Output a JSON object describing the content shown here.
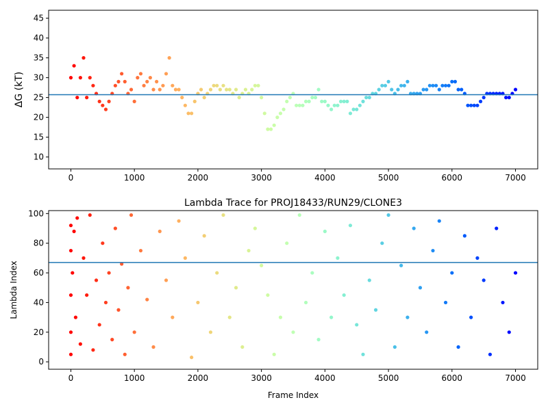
{
  "chart_data": [
    {
      "type": "scatter",
      "title": "",
      "xlabel": "",
      "ylabel": "ΔG (kT)",
      "xlim": [
        -350,
        7350
      ],
      "ylim": [
        7,
        47
      ],
      "xticks": [
        0,
        1000,
        2000,
        3000,
        4000,
        5000,
        6000,
        7000
      ],
      "yticks": [
        10,
        15,
        20,
        25,
        30,
        35,
        40,
        45
      ],
      "color_scale": "rainbow, red at frame 0 to violet at frame 7000",
      "horizontal_line": {
        "y": 25.7,
        "color": "#1f77b4"
      },
      "series": [
        {
          "color": "by frame index",
          "x": [
            0,
            50,
            100,
            150,
            200,
            250,
            300,
            350,
            400,
            450,
            500,
            550,
            600,
            650,
            700,
            750,
            800,
            850,
            900,
            950,
            1000,
            1050,
            1100,
            1150,
            1200,
            1250,
            1300,
            1350,
            1400,
            1450,
            1500,
            1550,
            1600,
            1650,
            1700,
            1750,
            1800,
            1850,
            1900,
            1950,
            2000,
            2050,
            2100,
            2150,
            2200,
            2250,
            2300,
            2350,
            2400,
            2450,
            2500,
            2550,
            2600,
            2650,
            2700,
            2750,
            2800,
            2850,
            2900,
            2950,
            3000,
            3050,
            3100,
            3150,
            3200,
            3250,
            3300,
            3350,
            3400,
            3450,
            3500,
            3550,
            3600,
            3650,
            3700,
            3750,
            3800,
            3850,
            3900,
            3950,
            4000,
            4050,
            4100,
            4150,
            4200,
            4250,
            4300,
            4350,
            4400,
            4450,
            4500,
            4550,
            4600,
            4650,
            4700,
            4750,
            4800,
            4850,
            4900,
            4950,
            5000,
            5050,
            5100,
            5150,
            5200,
            5250,
            5300,
            5350,
            5400,
            5450,
            5500,
            5550,
            5600,
            5650,
            5700,
            5750,
            5800,
            5850,
            5900,
            5950,
            6000,
            6050,
            6100,
            6150,
            6200,
            6250,
            6300,
            6350,
            6400,
            6450,
            6500,
            6550,
            6600,
            6650,
            6700,
            6750,
            6800,
            6850,
            6900,
            6950,
            7000
          ],
          "y": [
            30,
            33,
            25,
            30,
            35,
            25,
            30,
            28,
            26,
            24,
            23,
            22,
            24,
            26,
            28,
            29,
            31,
            29,
            26,
            27,
            24,
            30,
            31,
            28,
            29,
            30,
            27,
            29,
            27,
            28,
            31,
            35,
            28,
            27,
            27,
            25,
            23,
            21,
            21,
            24,
            26,
            27,
            25,
            26,
            27,
            28,
            28,
            27,
            28,
            27,
            27,
            26,
            27,
            25,
            26,
            27,
            26,
            27,
            28,
            28,
            25,
            21,
            17,
            17,
            18,
            20,
            21,
            22,
            24,
            25,
            26,
            23,
            23,
            23,
            24,
            24,
            25,
            25,
            27,
            24,
            24,
            23,
            22,
            23,
            23,
            24,
            24,
            24,
            21,
            22,
            22,
            23,
            24,
            25,
            25,
            26,
            26,
            27,
            28,
            28,
            29,
            27,
            26,
            27,
            28,
            28,
            29,
            26,
            26,
            26,
            26,
            27,
            27,
            28,
            28,
            28,
            27,
            28,
            28,
            28,
            29,
            29,
            27,
            27,
            26,
            23,
            23,
            23,
            23,
            24,
            25,
            26,
            26,
            26,
            26,
            26,
            26,
            25,
            25,
            26,
            27
          ]
        }
      ]
    },
    {
      "type": "scatter",
      "title": "Lambda Trace for PROJ18433/RUN29/CLONE3",
      "xlabel": "Frame Index",
      "ylabel": "Lambda Index",
      "xlim": [
        -350,
        7350
      ],
      "ylim": [
        -5,
        102
      ],
      "xticks": [
        0,
        1000,
        2000,
        3000,
        4000,
        5000,
        6000,
        7000
      ],
      "yticks": [
        0,
        20,
        40,
        60,
        80,
        100
      ],
      "color_scale": "rainbow, red at frame 0 to violet at frame 7000",
      "horizontal_line": {
        "y": 67,
        "color": "#1f77b4"
      },
      "series": [
        {
          "color": "by frame index",
          "x": [
            0,
            0,
            0,
            0,
            0,
            25,
            50,
            75,
            100,
            150,
            200,
            250,
            300,
            350,
            400,
            450,
            500,
            550,
            600,
            650,
            700,
            750,
            800,
            850,
            900,
            950,
            1000,
            1100,
            1200,
            1300,
            1400,
            1500,
            1600,
            1700,
            1800,
            1900,
            2000,
            2100,
            2200,
            2300,
            2400,
            2500,
            2600,
            2700,
            2800,
            2900,
            3000,
            3100,
            3200,
            3300,
            3400,
            3500,
            3600,
            3700,
            3800,
            3900,
            4000,
            4100,
            4200,
            4300,
            4400,
            4500,
            4600,
            4700,
            4800,
            4900,
            5000,
            5100,
            5200,
            5300,
            5400,
            5500,
            5600,
            5700,
            5800,
            5900,
            6000,
            6100,
            6200,
            6300,
            6400,
            6500,
            6600,
            6700,
            6800,
            6900,
            7000
          ],
          "y": [
            5,
            20,
            45,
            75,
            92,
            60,
            88,
            30,
            97,
            12,
            70,
            45,
            99,
            8,
            55,
            25,
            80,
            40,
            60,
            15,
            90,
            35,
            66,
            5,
            50,
            99,
            20,
            75,
            42,
            10,
            88,
            55,
            30,
            95,
            70,
            3,
            40,
            85,
            20,
            60,
            99,
            30,
            50,
            10,
            75,
            90,
            65,
            45,
            5,
            30,
            80,
            20,
            99,
            40,
            60,
            15,
            88,
            30,
            70,
            45,
            92,
            25,
            5,
            55,
            35,
            80,
            99,
            10,
            65,
            30,
            90,
            50,
            20,
            75,
            95,
            40,
            60,
            10,
            85,
            30,
            70,
            55,
            5,
            90,
            40,
            20,
            60
          ]
        }
      ]
    }
  ]
}
